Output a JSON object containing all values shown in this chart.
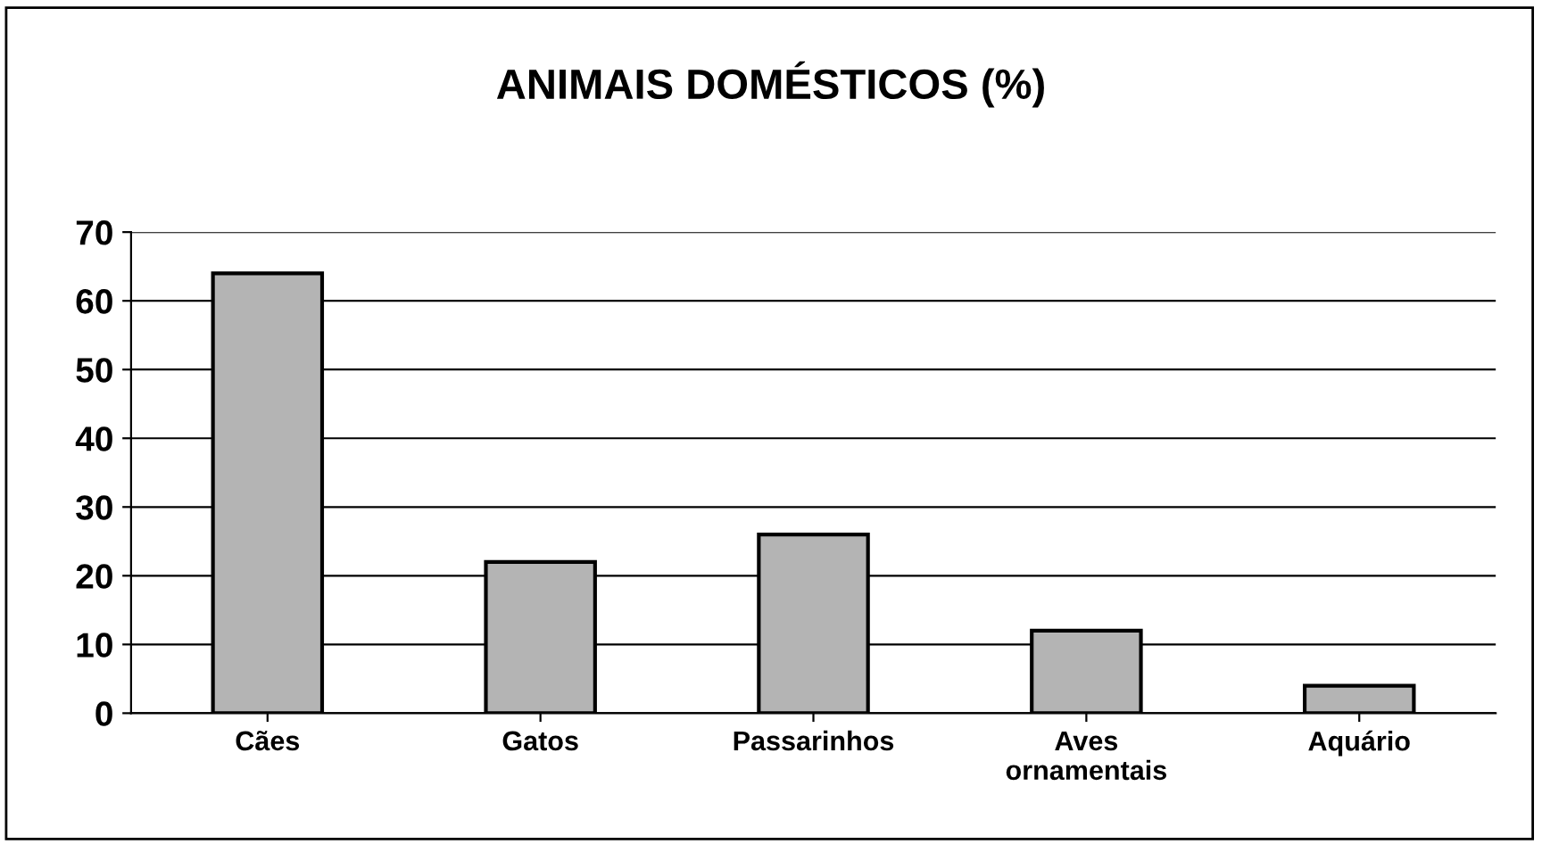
{
  "chart_data": {
    "type": "bar",
    "title": "ANIMAIS DOMÉSTICOS (%)",
    "categories": [
      "Cães",
      "Gatos",
      "Passarinhos",
      "Aves\nornamentais",
      "Aquário"
    ],
    "values": [
      64,
      22,
      26,
      12,
      4
    ],
    "color": "#b4b4b4",
    "ylim": [
      0,
      70
    ],
    "yticks": [
      0,
      10,
      20,
      30,
      40,
      50,
      60,
      70
    ],
    "grid": "y"
  }
}
